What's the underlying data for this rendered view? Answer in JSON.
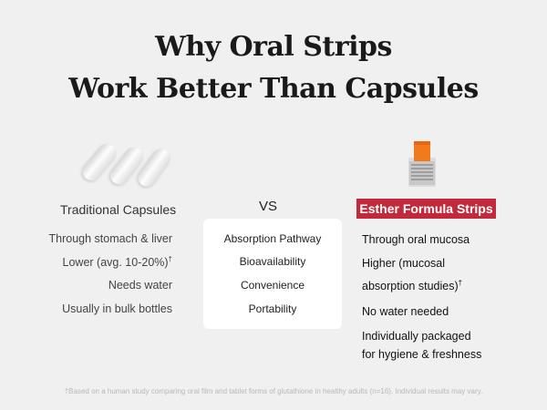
{
  "title": {
    "line1": "Why Oral Strips",
    "line2": "Work Better Than Capsules"
  },
  "left": {
    "heading": "Traditional Capsules",
    "rows": [
      "Through stomach & liver",
      "Lower (avg. 10-20%)",
      "Needs water",
      "Usually in bulk bottles"
    ],
    "dagger": "†"
  },
  "middle": {
    "vs": "VS",
    "rows": [
      "Absorption Pathway",
      "Bioavailability",
      "Convenience",
      "Portability"
    ]
  },
  "right": {
    "heading": "Esther Formula Strips",
    "rows": [
      "Through oral mucosa",
      "Higher (mucosal",
      "absorption studies)",
      "No water needed",
      "Individually packaged",
      "for hygiene & freshness"
    ],
    "dagger": "†"
  },
  "footnote": "†Based on a human study comparing oral film and tablet forms of glutathione in healthy adults (n=16). Individual results may vary.",
  "colors": {
    "badge": "#c22a3c",
    "background": "#f0f0f0"
  },
  "icons": {
    "left": "capsules-icon",
    "right": "strip-pack-icon"
  }
}
